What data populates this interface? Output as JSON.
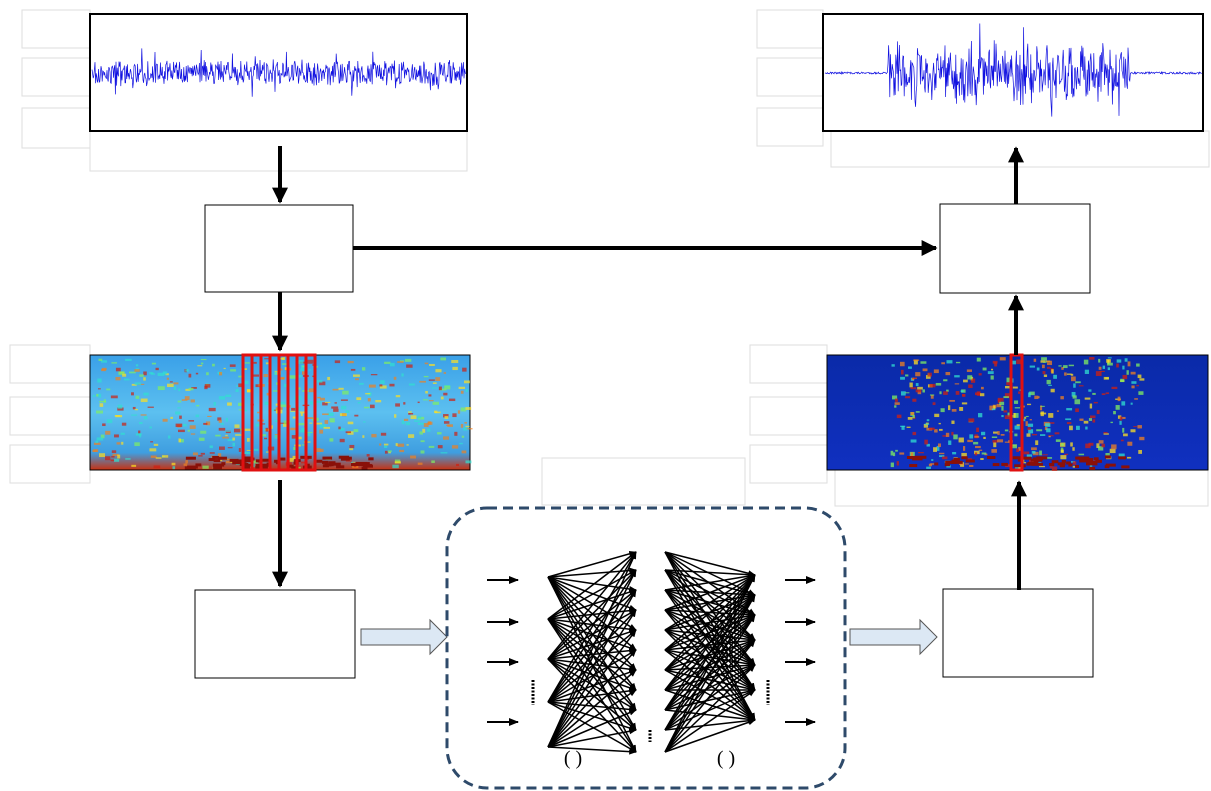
{
  "network": {
    "layer_labels": [
      "(        )",
      "(        )"
    ]
  }
}
